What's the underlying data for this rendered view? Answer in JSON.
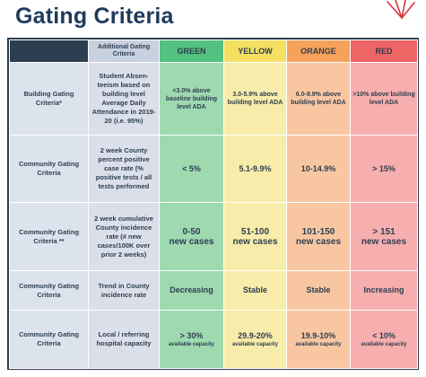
{
  "page": {
    "title": "Gating Criteria"
  },
  "table": {
    "headers": {
      "additional": "Additional Gating Criteria",
      "green": "GREEN",
      "yellow": "YELLOW",
      "orange": "ORANGE",
      "red": "RED"
    },
    "rows": [
      {
        "label": "Building Gating Criteria*",
        "additional": "Student Absen-teeism based on building level Average Daily Attendance in 2019-20 (i.e. 95%)",
        "green": "<3.0% above baseline building level ADA",
        "yellow": "3.0-5.9% above building level ADA",
        "orange": "6.0-9.9% above building level ADA",
        "red": ">10% above building level ADA"
      },
      {
        "label": "Community Gating Criteria",
        "additional": "2 week County percent positive case rate (% positive tests / all tests performed",
        "green": "< 5%",
        "yellow": "5.1-9.9%",
        "orange": "10-14.9%",
        "red": "> 15%"
      },
      {
        "label": "Community Gating Criteria **",
        "additional": "2 week cumulative County incidence rate (# new cases/100K over prior 2 weeks)",
        "green": "0-50",
        "green_sub": "new cases",
        "yellow": "51-100",
        "yellow_sub": "new cases",
        "orange": "101-150",
        "orange_sub": "new cases",
        "red": "> 151",
        "red_sub": "new cases"
      },
      {
        "label": "Community Gating Criteria",
        "additional": "Trend in County incidence rate",
        "green": "Decreasing",
        "yellow": "Stable",
        "orange": "Stable",
        "red": "Increasing"
      },
      {
        "label": "Community Gating Criteria",
        "additional": "Local / referring hospital capacity",
        "green": "> 30%",
        "green_sub": "available capacity",
        "yellow": "29.9-20%",
        "yellow_sub": "available capacity",
        "orange": "19.9-10%",
        "orange_sub": "available capacity",
        "red": "< 10%",
        "red_sub": "available capacity"
      }
    ]
  },
  "colors": {
    "green": "#53c17f",
    "yellow": "#f4df60",
    "orange": "#f6a15c",
    "red": "#ef6464",
    "navy": "#2d3e50"
  },
  "icons": {
    "corner_logo": "red-star-burst-icon"
  }
}
